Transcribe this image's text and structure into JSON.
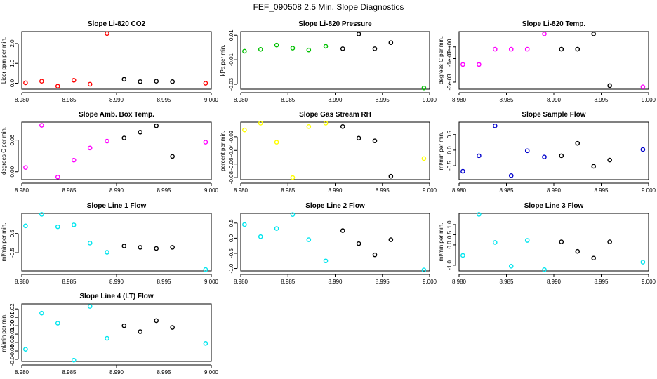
{
  "page_title": "FEF_090508  2.5 Min. Slope Diagnostics",
  "colors": {
    "red": "#ff0000",
    "green": "#00c000",
    "black": "#000000",
    "magenta": "#ff00ff",
    "yellow": "#ffff00",
    "blue": "#0000cc",
    "cyan": "#00e5ee"
  },
  "chart_data": [
    {
      "type": "scatter",
      "title": "Slope Li-820 CO2",
      "ylabel": "Licor ppm per min.",
      "xticks": [
        "8.980",
        "8.985",
        "8.990",
        "8.995",
        "9.000"
      ],
      "yticks": [
        "0.0",
        "1.0",
        "2.0"
      ],
      "ytick_values": [
        0,
        1,
        2
      ],
      "xlim": [
        8.98,
        9.0
      ],
      "ylim": [
        -0.3,
        2.6
      ],
      "points": [
        {
          "x": 8.9804,
          "y": 0.02,
          "color": "red"
        },
        {
          "x": 8.9821,
          "y": 0.1,
          "color": "red"
        },
        {
          "x": 8.9838,
          "y": -0.15,
          "color": "red"
        },
        {
          "x": 8.9855,
          "y": 0.15,
          "color": "red"
        },
        {
          "x": 8.9872,
          "y": -0.05,
          "color": "red"
        },
        {
          "x": 8.989,
          "y": 2.5,
          "color": "red"
        },
        {
          "x": 8.9908,
          "y": 0.2,
          "color": "black"
        },
        {
          "x": 8.9925,
          "y": 0.08,
          "color": "black"
        },
        {
          "x": 8.9942,
          "y": 0.1,
          "color": "black"
        },
        {
          "x": 8.9959,
          "y": 0.08,
          "color": "black"
        },
        {
          "x": 8.9994,
          "y": 0.0,
          "color": "red"
        }
      ]
    },
    {
      "type": "scatter",
      "title": "Slope Li-820 Pressure",
      "ylabel": "kPa per min.",
      "xticks": [
        "8.980",
        "8.985",
        "8.990",
        "8.995",
        "9.000"
      ],
      "yticks": [
        "-0.03",
        "-0.01",
        "0.01"
      ],
      "ytick_values": [
        -0.03,
        -0.01,
        0.01
      ],
      "xlim": [
        8.98,
        9.0
      ],
      "ylim": [
        -0.034,
        0.013
      ],
      "points": [
        {
          "x": 8.9804,
          "y": -0.003,
          "color": "green"
        },
        {
          "x": 8.9821,
          "y": -0.0015,
          "color": "green"
        },
        {
          "x": 8.9838,
          "y": 0.002,
          "color": "green"
        },
        {
          "x": 8.9855,
          "y": -0.0005,
          "color": "green"
        },
        {
          "x": 8.9872,
          "y": -0.002,
          "color": "green"
        },
        {
          "x": 8.989,
          "y": 0.001,
          "color": "green"
        },
        {
          "x": 8.9908,
          "y": -0.001,
          "color": "black"
        },
        {
          "x": 8.9925,
          "y": 0.011,
          "color": "black"
        },
        {
          "x": 8.9942,
          "y": -0.001,
          "color": "black"
        },
        {
          "x": 8.9959,
          "y": 0.004,
          "color": "black"
        },
        {
          "x": 8.9994,
          "y": -0.033,
          "color": "green"
        }
      ]
    },
    {
      "type": "scatter",
      "title": "Slope Li-820 Temp.",
      "ylabel": "degrees C per min.",
      "xticks": [
        "8.980",
        "8.985",
        "8.990",
        "8.995",
        "9.000"
      ],
      "yticks": [
        "-3e-03",
        "-1e-03",
        "0e+00"
      ],
      "ytick_values": [
        -0.003,
        -0.001,
        0.0
      ],
      "xlim": [
        8.98,
        9.0
      ],
      "ylim": [
        -0.0036,
        0.0013
      ],
      "points": [
        {
          "x": 8.9804,
          "y": -0.0015,
          "color": "magenta"
        },
        {
          "x": 8.9821,
          "y": -0.0015,
          "color": "magenta"
        },
        {
          "x": 8.9838,
          "y": -0.0002,
          "color": "magenta"
        },
        {
          "x": 8.9855,
          "y": -0.0002,
          "color": "magenta"
        },
        {
          "x": 8.9872,
          "y": -0.0002,
          "color": "magenta"
        },
        {
          "x": 8.989,
          "y": 0.0011,
          "color": "magenta"
        },
        {
          "x": 8.9908,
          "y": -0.0002,
          "color": "black"
        },
        {
          "x": 8.9925,
          "y": -0.0002,
          "color": "black"
        },
        {
          "x": 8.9942,
          "y": 0.0011,
          "color": "black"
        },
        {
          "x": 8.9959,
          "y": -0.0033,
          "color": "black"
        },
        {
          "x": 8.9994,
          "y": -0.0034,
          "color": "magenta"
        }
      ]
    },
    {
      "type": "scatter",
      "title": "Slope Amb. Box Temp.",
      "ylabel": "degrees C per min.",
      "xticks": [
        "8.980",
        "8.985",
        "8.990",
        "8.995",
        "9.000"
      ],
      "yticks": [
        "0.00",
        "0.06"
      ],
      "ytick_values": [
        0.0,
        0.06
      ],
      "xlim": [
        8.98,
        9.0
      ],
      "ylim": [
        -0.015,
        0.094
      ],
      "points": [
        {
          "x": 8.9804,
          "y": 0.008,
          "color": "magenta"
        },
        {
          "x": 8.9821,
          "y": 0.088,
          "color": "magenta"
        },
        {
          "x": 8.9838,
          "y": -0.01,
          "color": "magenta"
        },
        {
          "x": 8.9855,
          "y": 0.022,
          "color": "magenta"
        },
        {
          "x": 8.9872,
          "y": 0.045,
          "color": "magenta"
        },
        {
          "x": 8.989,
          "y": 0.058,
          "color": "magenta"
        },
        {
          "x": 8.9908,
          "y": 0.064,
          "color": "black"
        },
        {
          "x": 8.9925,
          "y": 0.075,
          "color": "black"
        },
        {
          "x": 8.9942,
          "y": 0.087,
          "color": "black"
        },
        {
          "x": 8.9959,
          "y": 0.029,
          "color": "black"
        },
        {
          "x": 8.9994,
          "y": 0.056,
          "color": "magenta"
        }
      ]
    },
    {
      "type": "scatter",
      "title": "Slope Gas Stream RH",
      "ylabel": "percent per min.",
      "xticks": [
        "8.980",
        "8.985",
        "8.990",
        "8.995",
        "9.000"
      ],
      "yticks": [
        "-0.08",
        "-0.06",
        "-0.04",
        "-0.02"
      ],
      "ytick_values": [
        -0.08,
        -0.06,
        -0.04,
        -0.02
      ],
      "xlim": [
        8.98,
        9.0
      ],
      "ylim": [
        -0.083,
        0.0015
      ],
      "points": [
        {
          "x": 8.9804,
          "y": -0.01,
          "color": "yellow"
        },
        {
          "x": 8.9821,
          "y": 0.0,
          "color": "yellow"
        },
        {
          "x": 8.9838,
          "y": -0.028,
          "color": "yellow"
        },
        {
          "x": 8.9855,
          "y": -0.08,
          "color": "yellow"
        },
        {
          "x": 8.9872,
          "y": -0.005,
          "color": "yellow"
        },
        {
          "x": 8.989,
          "y": 0.0,
          "color": "yellow"
        },
        {
          "x": 8.9908,
          "y": -0.005,
          "color": "black"
        },
        {
          "x": 8.9925,
          "y": -0.022,
          "color": "black"
        },
        {
          "x": 8.9942,
          "y": -0.026,
          "color": "black"
        },
        {
          "x": 8.9959,
          "y": -0.078,
          "color": "black"
        },
        {
          "x": 8.9994,
          "y": -0.052,
          "color": "yellow"
        }
      ]
    },
    {
      "type": "scatter",
      "title": "Slope Sample Flow",
      "ylabel": "ml/min per min.",
      "xticks": [
        "8.980",
        "8.985",
        "8.990",
        "8.995",
        "9.000"
      ],
      "yticks": [
        "-0.5",
        "0.0",
        "0.5"
      ],
      "ytick_values": [
        -0.5,
        0.0,
        0.5
      ],
      "xlim": [
        8.98,
        9.0
      ],
      "ylim": [
        -0.95,
        0.9
      ],
      "points": [
        {
          "x": 8.9804,
          "y": -0.68,
          "color": "blue"
        },
        {
          "x": 8.9821,
          "y": -0.18,
          "color": "blue"
        },
        {
          "x": 8.9838,
          "y": 0.78,
          "color": "blue"
        },
        {
          "x": 8.9855,
          "y": -0.82,
          "color": "blue"
        },
        {
          "x": 8.9872,
          "y": -0.02,
          "color": "blue"
        },
        {
          "x": 8.989,
          "y": -0.22,
          "color": "blue"
        },
        {
          "x": 8.9908,
          "y": -0.18,
          "color": "black"
        },
        {
          "x": 8.9925,
          "y": 0.22,
          "color": "black"
        },
        {
          "x": 8.9942,
          "y": -0.52,
          "color": "black"
        },
        {
          "x": 8.9959,
          "y": -0.32,
          "color": "black"
        },
        {
          "x": 8.9994,
          "y": 0.02,
          "color": "blue"
        }
      ]
    },
    {
      "type": "scatter",
      "title": "Slope Line 1 Flow",
      "ylabel": "ml/min per min.",
      "xticks": [
        "8.980",
        "8.985",
        "8.990",
        "8.995",
        "9.000"
      ],
      "yticks": [
        "-0.5",
        "0.5"
      ],
      "ytick_values": [
        -0.5,
        0.5
      ],
      "xlim": [
        8.98,
        9.0
      ],
      "ylim": [
        -1.45,
        1.55
      ],
      "points": [
        {
          "x": 8.9804,
          "y": 0.9,
          "color": "cyan"
        },
        {
          "x": 8.9821,
          "y": 1.5,
          "color": "cyan"
        },
        {
          "x": 8.9838,
          "y": 0.85,
          "color": "cyan"
        },
        {
          "x": 8.9855,
          "y": 0.95,
          "color": "cyan"
        },
        {
          "x": 8.9872,
          "y": 0.0,
          "color": "cyan"
        },
        {
          "x": 8.989,
          "y": -0.48,
          "color": "cyan"
        },
        {
          "x": 8.9908,
          "y": -0.15,
          "color": "black"
        },
        {
          "x": 8.9925,
          "y": -0.22,
          "color": "black"
        },
        {
          "x": 8.9942,
          "y": -0.28,
          "color": "black"
        },
        {
          "x": 8.9959,
          "y": -0.22,
          "color": "black"
        },
        {
          "x": 8.9994,
          "y": -1.38,
          "color": "cyan"
        }
      ]
    },
    {
      "type": "scatter",
      "title": "Slope Line 2 Flow",
      "ylabel": "",
      "xticks": [
        "8.980",
        "8.985",
        "8.990",
        "8.995",
        "9.000"
      ],
      "yticks": [
        "-1.0",
        "-0.5",
        "0.0",
        "0.5"
      ],
      "ytick_values": [
        -1.0,
        -0.5,
        0.0,
        0.5
      ],
      "xlim": [
        8.98,
        9.0
      ],
      "ylim": [
        -1.08,
        0.82
      ],
      "points": [
        {
          "x": 8.9804,
          "y": 0.45,
          "color": "cyan"
        },
        {
          "x": 8.9821,
          "y": 0.05,
          "color": "cyan"
        },
        {
          "x": 8.9838,
          "y": 0.32,
          "color": "cyan"
        },
        {
          "x": 8.9855,
          "y": 0.78,
          "color": "cyan"
        },
        {
          "x": 8.9872,
          "y": -0.05,
          "color": "cyan"
        },
        {
          "x": 8.989,
          "y": -0.75,
          "color": "cyan"
        },
        {
          "x": 8.9908,
          "y": 0.25,
          "color": "black"
        },
        {
          "x": 8.9925,
          "y": -0.18,
          "color": "black"
        },
        {
          "x": 8.9942,
          "y": -0.55,
          "color": "black"
        },
        {
          "x": 8.9959,
          "y": -0.05,
          "color": "black"
        },
        {
          "x": 8.9994,
          "y": -1.05,
          "color": "cyan"
        }
      ]
    },
    {
      "type": "scatter",
      "title": "Slope Line 3 Flow",
      "ylabel": "ml/min per min.",
      "xticks": [
        "8.980",
        "8.985",
        "8.990",
        "8.995",
        "9.000"
      ],
      "yticks": [
        "-1.0",
        "0.0",
        "0.5",
        "1.0"
      ],
      "ytick_values": [
        -1.0,
        0.0,
        0.5,
        1.0
      ],
      "xlim": [
        8.98,
        9.0
      ],
      "ylim": [
        -1.28,
        1.55
      ],
      "points": [
        {
          "x": 8.9804,
          "y": -0.52,
          "color": "cyan"
        },
        {
          "x": 8.9821,
          "y": 1.5,
          "color": "cyan"
        },
        {
          "x": 8.9838,
          "y": 0.12,
          "color": "cyan"
        },
        {
          "x": 8.9855,
          "y": -1.05,
          "color": "cyan"
        },
        {
          "x": 8.9872,
          "y": 0.22,
          "color": "cyan"
        },
        {
          "x": 8.989,
          "y": -1.22,
          "color": "cyan"
        },
        {
          "x": 8.9908,
          "y": 0.15,
          "color": "black"
        },
        {
          "x": 8.9925,
          "y": -0.32,
          "color": "black"
        },
        {
          "x": 8.9942,
          "y": -0.65,
          "color": "black"
        },
        {
          "x": 8.9959,
          "y": 0.15,
          "color": "black"
        },
        {
          "x": 8.9994,
          "y": -0.85,
          "color": "cyan"
        }
      ]
    },
    {
      "type": "scatter",
      "title": "Slope Line 4 (LT) Flow",
      "ylabel": "ml/min per min.",
      "xticks": [
        "8.980",
        "8.985",
        "8.990",
        "8.995",
        "9.000"
      ],
      "yticks": [
        "-0.04",
        "-0.03",
        "-0.02",
        "-0.01",
        "0.00",
        "0.01",
        "0.02"
      ],
      "ytick_values": [
        -0.04,
        -0.03,
        -0.02,
        -0.01,
        0.0,
        0.01,
        0.02
      ],
      "xlim": [
        8.98,
        9.0
      ],
      "ylim": [
        -0.0425,
        0.026
      ],
      "points": [
        {
          "x": 8.9804,
          "y": -0.028,
          "color": "cyan"
        },
        {
          "x": 8.9821,
          "y": 0.015,
          "color": "cyan"
        },
        {
          "x": 8.9838,
          "y": 0.003,
          "color": "cyan"
        },
        {
          "x": 8.9855,
          "y": -0.041,
          "color": "cyan"
        },
        {
          "x": 8.9872,
          "y": 0.023,
          "color": "cyan"
        },
        {
          "x": 8.989,
          "y": -0.015,
          "color": "cyan"
        },
        {
          "x": 8.9908,
          "y": 0.0,
          "color": "black"
        },
        {
          "x": 8.9925,
          "y": -0.007,
          "color": "black"
        },
        {
          "x": 8.9942,
          "y": 0.006,
          "color": "black"
        },
        {
          "x": 8.9959,
          "y": -0.002,
          "color": "black"
        },
        {
          "x": 8.9994,
          "y": -0.021,
          "color": "cyan"
        }
      ]
    }
  ]
}
